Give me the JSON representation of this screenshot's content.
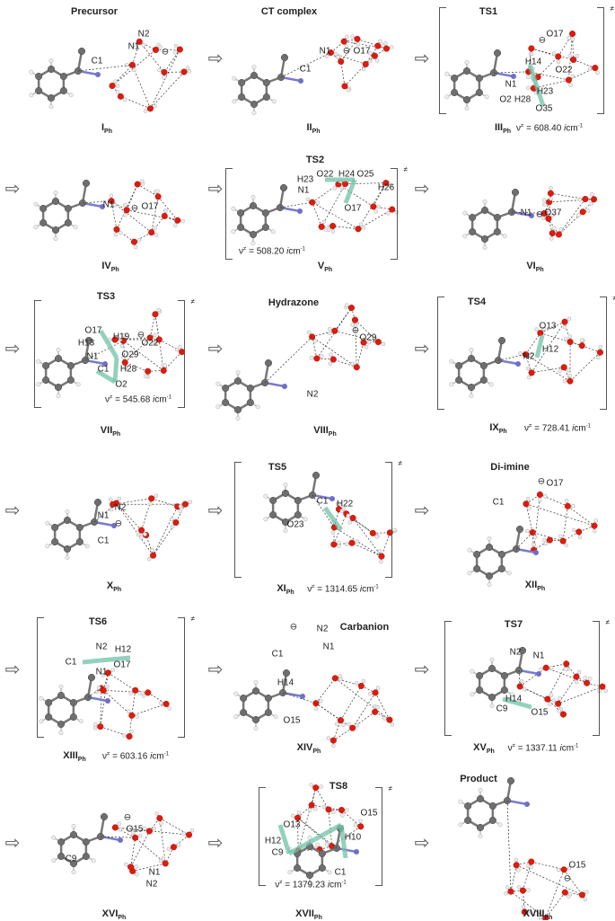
{
  "symbols": {
    "arrow": "⇨",
    "anion": "⊖",
    "ts_mark": "≠",
    "nu": "ν",
    "freq_eq": " = ",
    "unit_i": "i",
    "unit": "cm",
    "unit_exp": "-1",
    "sub": "Ph"
  },
  "panels": [
    {
      "title": "Precursor",
      "label": "I",
      "freq": "",
      "atoms": [
        "C1",
        "N2",
        "N1"
      ]
    },
    {
      "title": "CT complex",
      "label": "II",
      "freq": "",
      "atoms": [
        "N1",
        "O17",
        "C1"
      ]
    },
    {
      "title": "TS1",
      "label": "III",
      "freq": "608.40",
      "atoms": [
        "O17",
        "H14",
        "O22",
        "N1",
        "H23",
        "O2",
        "H28",
        "O35"
      ]
    },
    {
      "title": "",
      "label": "IV",
      "freq": "",
      "atoms": [
        "N1",
        "O17"
      ]
    },
    {
      "title": "TS2",
      "label": "V",
      "freq": "508.20",
      "atoms": [
        "H23",
        "O22",
        "H24",
        "O25",
        "N1",
        "H26",
        "O17"
      ]
    },
    {
      "title": "",
      "label": "VI",
      "freq": "",
      "atoms": [
        "N1",
        "O37"
      ]
    },
    {
      "title": "TS3",
      "label": "VII",
      "freq": "545.68",
      "atoms": [
        "O17",
        "H19",
        "H13",
        "O22",
        "N1",
        "O29",
        "C1",
        "H28",
        "O2"
      ]
    },
    {
      "title": "Hydrazone",
      "label": "VIII",
      "freq": "",
      "atoms": [
        "O29",
        "N2"
      ]
    },
    {
      "title": "TS4",
      "label": "IX",
      "freq": "728.41",
      "atoms": [
        "O13",
        "H12",
        "N2"
      ]
    },
    {
      "title": "",
      "label": "X",
      "freq": "",
      "atoms": [
        "N2",
        "N1",
        "C1"
      ]
    },
    {
      "title": "TS5",
      "label": "XI",
      "freq": "1314.65",
      "atoms": [
        "C1",
        "H22",
        "O23"
      ]
    },
    {
      "title": "Di-imine",
      "label": "XII",
      "freq": "",
      "atoms": [
        "O17",
        "C1"
      ]
    },
    {
      "title": "TS6",
      "label": "XIII",
      "freq": "603.16",
      "atoms": [
        "N2",
        "H12",
        "C1",
        "O17",
        "N1"
      ]
    },
    {
      "title": "Carbanion",
      "label": "XIV",
      "freq": "",
      "atoms": [
        "N2",
        "N1",
        "C1",
        "H14",
        "O15"
      ]
    },
    {
      "title": "TS7",
      "label": "XV",
      "freq": "1337.11",
      "atoms": [
        "N2",
        "N1",
        "H14",
        "C9",
        "O15"
      ]
    },
    {
      "title": "",
      "label": "XVI",
      "freq": "",
      "atoms": [
        "O15",
        "C9",
        "N1",
        "N2"
      ]
    },
    {
      "title": "TS8",
      "label": "XVII",
      "freq": "1379.23",
      "atoms": [
        "O15",
        "O13",
        "H12",
        "H10",
        "C9",
        "C1"
      ]
    },
    {
      "title": "Product",
      "label": "XVIII",
      "freq": "",
      "atoms": [
        "O15"
      ]
    }
  ]
}
